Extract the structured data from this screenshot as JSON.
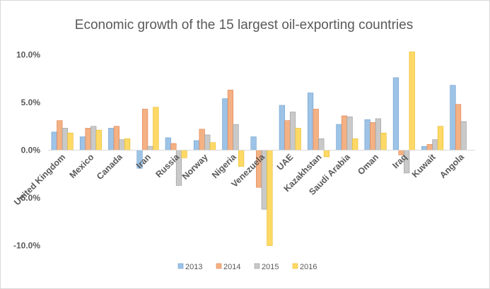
{
  "chart_data": {
    "type": "bar",
    "title": "Economic growth of the 15 largest oil-exporting countries",
    "xlabel": "",
    "ylabel": "",
    "ylim": [
      -10,
      12.5
    ],
    "yticks": [
      -10,
      -5,
      0,
      5,
      10
    ],
    "ytick_labels": [
      "-10.0%",
      "-5.0%",
      "0.0%",
      "5.0%",
      "10.0%"
    ],
    "grid": false,
    "legend_position": "bottom",
    "categories": [
      "United Kingdom",
      "Mexico",
      "Canada",
      "Iran",
      "Russia",
      "Norway",
      "Nigeria",
      "Venezuela",
      "UAE",
      "Kazakhstan",
      "Saudi Arabia",
      "Oman",
      "Iraq",
      "Kuwait",
      "Angola"
    ],
    "series": [
      {
        "name": "2013",
        "color": "#9dc3e6",
        "stroke": "#6f9fd0",
        "values": [
          1.9,
          1.4,
          2.3,
          -1.9,
          1.3,
          1.0,
          5.4,
          1.4,
          4.7,
          6.0,
          2.7,
          3.2,
          7.6,
          0.4,
          6.8
        ]
      },
      {
        "name": "2014",
        "color": "#f4b183",
        "stroke": "#e07f52",
        "values": [
          3.1,
          2.3,
          2.5,
          4.3,
          0.7,
          2.2,
          6.3,
          -3.9,
          3.1,
          4.3,
          3.6,
          2.9,
          -0.5,
          0.6,
          4.8
        ]
      },
      {
        "name": "2015",
        "color": "#c9c9c9",
        "stroke": "#9a9a9a",
        "values": [
          2.3,
          2.5,
          1.1,
          0.4,
          -3.7,
          1.6,
          2.7,
          -6.2,
          4.0,
          1.2,
          3.5,
          3.3,
          -2.4,
          1.1,
          3.0
        ]
      },
      {
        "name": "2016",
        "color": "#ffd966",
        "stroke": "#e6b820",
        "values": [
          1.8,
          2.1,
          1.2,
          4.5,
          -0.8,
          0.8,
          -1.7,
          -10.0,
          2.3,
          -0.7,
          1.2,
          1.8,
          10.3,
          2.5,
          null
        ]
      }
    ]
  }
}
